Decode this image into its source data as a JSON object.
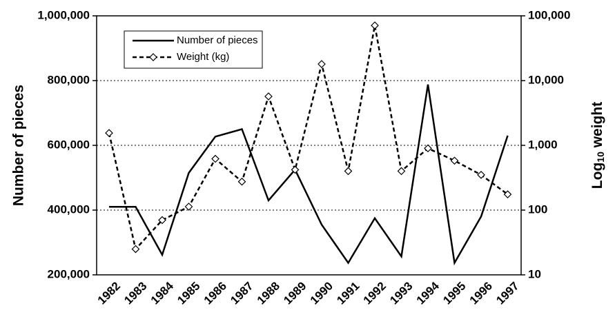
{
  "chart_data": {
    "type": "line",
    "categories": [
      "1982",
      "1983",
      "1984",
      "1985",
      "1986",
      "1987",
      "1988",
      "1989",
      "1990",
      "1991",
      "1992",
      "1993",
      "1994",
      "1995",
      "1996",
      "1997"
    ],
    "y_label": "Number of pieces",
    "y2_label_parts": [
      "Log",
      "10",
      " weight"
    ],
    "ylim": [
      200000,
      1000000
    ],
    "yticks": [
      {
        "value": 200000,
        "label": "200,000"
      },
      {
        "value": 400000,
        "label": "400,000"
      },
      {
        "value": 600000,
        "label": "600,000"
      },
      {
        "value": 800000,
        "label": "800,000"
      },
      {
        "value": 1000000,
        "label": "1,000,000"
      }
    ],
    "y2lim": [
      10,
      100000
    ],
    "y2scale": "log",
    "y2ticks": [
      10,
      100,
      {
        "value": 1000,
        "label": "1,000"
      },
      {
        "value": 10000,
        "label": "10,000"
      },
      {
        "value": 100000,
        "label": "100,000"
      }
    ],
    "grid": true,
    "legend": "upper left",
    "series": [
      {
        "name": "Number of pieces",
        "color": "#000000",
        "style": "solid",
        "values": [
          410000,
          410000,
          262000,
          515000,
          627000,
          650000,
          430000,
          525000,
          355000,
          237000,
          375000,
          257000,
          788000,
          237000,
          380000,
          630000
        ]
      },
      {
        "name": "Weight (kg)",
        "color": "#000000",
        "style": "dashed",
        "marker": "diamond",
        "axis": "y2",
        "values": [
          1550,
          25,
          70,
          113,
          620,
          275,
          5700,
          420,
          18000,
          400,
          71000,
          400,
          900,
          580,
          350,
          175
        ]
      }
    ]
  }
}
